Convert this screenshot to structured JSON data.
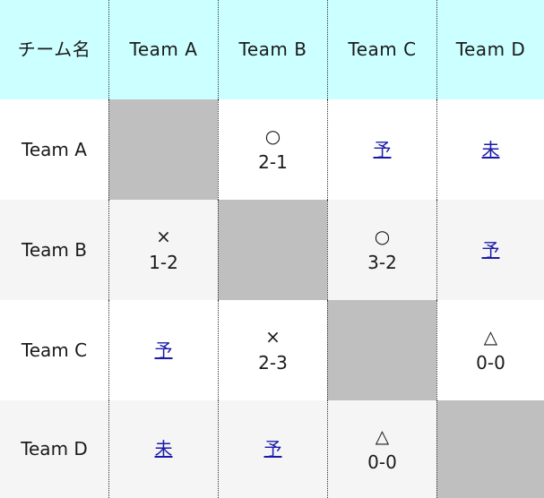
{
  "header": {
    "corner": "チーム名",
    "teams": [
      "Team A",
      "Team B",
      "Team C",
      "Team D"
    ]
  },
  "rows": [
    {
      "team": "Team A",
      "cells": [
        {
          "kind": "self"
        },
        {
          "kind": "result",
          "symbol": "○",
          "score": "2-1"
        },
        {
          "kind": "link",
          "text": "予"
        },
        {
          "kind": "link",
          "text": "未"
        }
      ]
    },
    {
      "team": "Team B",
      "cells": [
        {
          "kind": "result",
          "symbol": "×",
          "score": "1-2"
        },
        {
          "kind": "self"
        },
        {
          "kind": "result",
          "symbol": "○",
          "score": "3-2"
        },
        {
          "kind": "link",
          "text": "予"
        }
      ]
    },
    {
      "team": "Team C",
      "cells": [
        {
          "kind": "link",
          "text": "予"
        },
        {
          "kind": "result",
          "symbol": "×",
          "score": "2-3"
        },
        {
          "kind": "self"
        },
        {
          "kind": "result",
          "symbol": "△",
          "score": "0-0"
        }
      ]
    },
    {
      "team": "Team D",
      "cells": [
        {
          "kind": "link",
          "text": "未"
        },
        {
          "kind": "link",
          "text": "予"
        },
        {
          "kind": "result",
          "symbol": "△",
          "score": "0-0"
        },
        {
          "kind": "self"
        }
      ]
    }
  ],
  "colors": {
    "header_bg": "#ccffff",
    "self_cell_bg": "#bfbfbf",
    "link": "#1a1aa8",
    "alt_row_bg": "#f5f5f5"
  }
}
